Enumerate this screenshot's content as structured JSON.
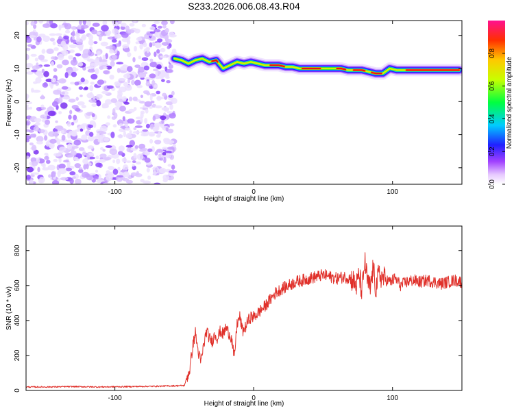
{
  "title": "S233.2026.006.08.43.R04",
  "chart_data": [
    {
      "type": "heatmap",
      "title": "S233.2026.006.08.43.R04",
      "xlabel": "Height of straight line (km)",
      "ylabel": "Frequency (Hz)",
      "xlim": [
        -164,
        150
      ],
      "ylim": [
        -25,
        24.5
      ],
      "xticks": [
        -100,
        0,
        100
      ],
      "yticks": [
        -20,
        -10,
        0,
        10,
        20
      ],
      "noise_region": {
        "x_range": [
          -164,
          -57
        ],
        "y_range": [
          -25,
          24.5
        ]
      },
      "ridge": {
        "x": [
          -57,
          -52,
          -47,
          -42,
          -37,
          -32,
          -27,
          -22,
          -17,
          -12,
          -7,
          -2,
          3,
          8,
          13,
          18,
          23,
          28,
          33,
          38,
          43,
          48,
          53,
          58,
          63,
          68,
          73,
          78,
          83,
          88,
          93,
          98,
          103,
          108,
          113,
          118,
          123,
          128,
          133,
          138,
          143,
          148
        ],
        "y": [
          13,
          12.5,
          11.5,
          12.5,
          13,
          12,
          12.5,
          10,
          11,
          12,
          11.5,
          12,
          11.5,
          11,
          11,
          11,
          10.5,
          10.5,
          10,
          10,
          10,
          10,
          10,
          10,
          10,
          9.5,
          9.5,
          9.5,
          9,
          8.5,
          8.5,
          10,
          9.5,
          9.5,
          9.5,
          9.5,
          9.5,
          9.5,
          9.5,
          9.5,
          9.5,
          9.5
        ]
      },
      "colorbar": {
        "label": "Normalized spectral amplitude",
        "range": [
          0.0,
          1.0
        ],
        "ticks": [
          "0.0",
          "0.2",
          "0.4",
          "0.6",
          "0.8"
        ]
      }
    },
    {
      "type": "line",
      "xlabel": "Height of straight line (km)",
      "ylabel": "SNR (10 * v/v)",
      "xlim": [
        -164,
        150
      ],
      "ylim": [
        0,
        940
      ],
      "xticks": [
        -100,
        0,
        100
      ],
      "yticks": [
        0,
        200,
        400,
        600,
        800
      ],
      "series": [
        {
          "name": "SNR",
          "color": "#e0302a",
          "x": [
            -164,
            -150,
            -130,
            -110,
            -90,
            -70,
            -50,
            -46,
            -44,
            -42,
            -40,
            -38,
            -36,
            -34,
            -32,
            -30,
            -28,
            -26,
            -24,
            -22,
            -20,
            -18,
            -16,
            -14,
            -12,
            -10,
            -8,
            -6,
            -4,
            -2,
            0,
            4,
            8,
            12,
            16,
            20,
            25,
            30,
            35,
            40,
            45,
            50,
            55,
            60,
            65,
            70,
            74,
            76,
            78,
            80,
            82,
            84,
            86,
            88,
            90,
            94,
            98,
            102,
            106,
            110,
            115,
            120,
            125,
            130,
            135,
            140,
            145,
            150
          ],
          "y": [
            20,
            20,
            22,
            20,
            22,
            24,
            28,
            120,
            250,
            330,
            220,
            160,
            260,
            340,
            300,
            280,
            320,
            300,
            340,
            320,
            360,
            330,
            300,
            180,
            380,
            420,
            340,
            360,
            400,
            420,
            420,
            450,
            480,
            520,
            560,
            580,
            600,
            620,
            630,
            640,
            650,
            660,
            650,
            640,
            650,
            640,
            600,
            660,
            560,
            740,
            620,
            580,
            700,
            580,
            660,
            640,
            620,
            640,
            600,
            620,
            630,
            620,
            630,
            620,
            610,
            620,
            630,
            620
          ]
        }
      ]
    }
  ]
}
